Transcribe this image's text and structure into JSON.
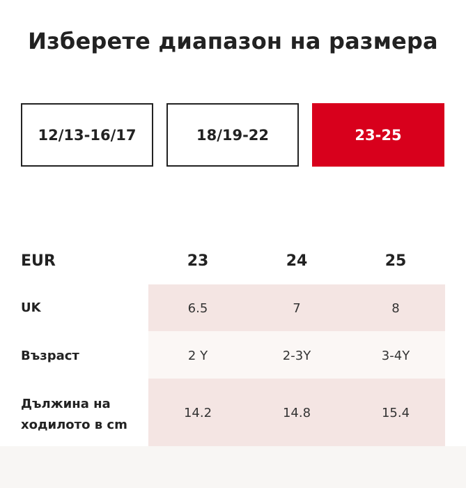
{
  "title": "Изберете диапазон на размера",
  "ranges": [
    {
      "label": "12/13-16/17",
      "selected": false
    },
    {
      "label": "18/19-22",
      "selected": false
    },
    {
      "label": "23-25",
      "selected": true
    }
  ],
  "colors": {
    "accent": "#d8001c",
    "row_tint": "#f4e5e3",
    "row_light": "#fbf7f5"
  },
  "table": {
    "header": {
      "label": "EUR",
      "values": [
        "23",
        "24",
        "25"
      ]
    },
    "rows": [
      {
        "label": "UK",
        "values": [
          "6.5",
          "7",
          "8"
        ]
      },
      {
        "label": "Възраст",
        "values": [
          "2 Y",
          "2-3Y",
          "3-4Y"
        ]
      },
      {
        "label": "Дължина на ходилото в cm",
        "values": [
          "14.2",
          "14.8",
          "15.4"
        ]
      }
    ]
  }
}
